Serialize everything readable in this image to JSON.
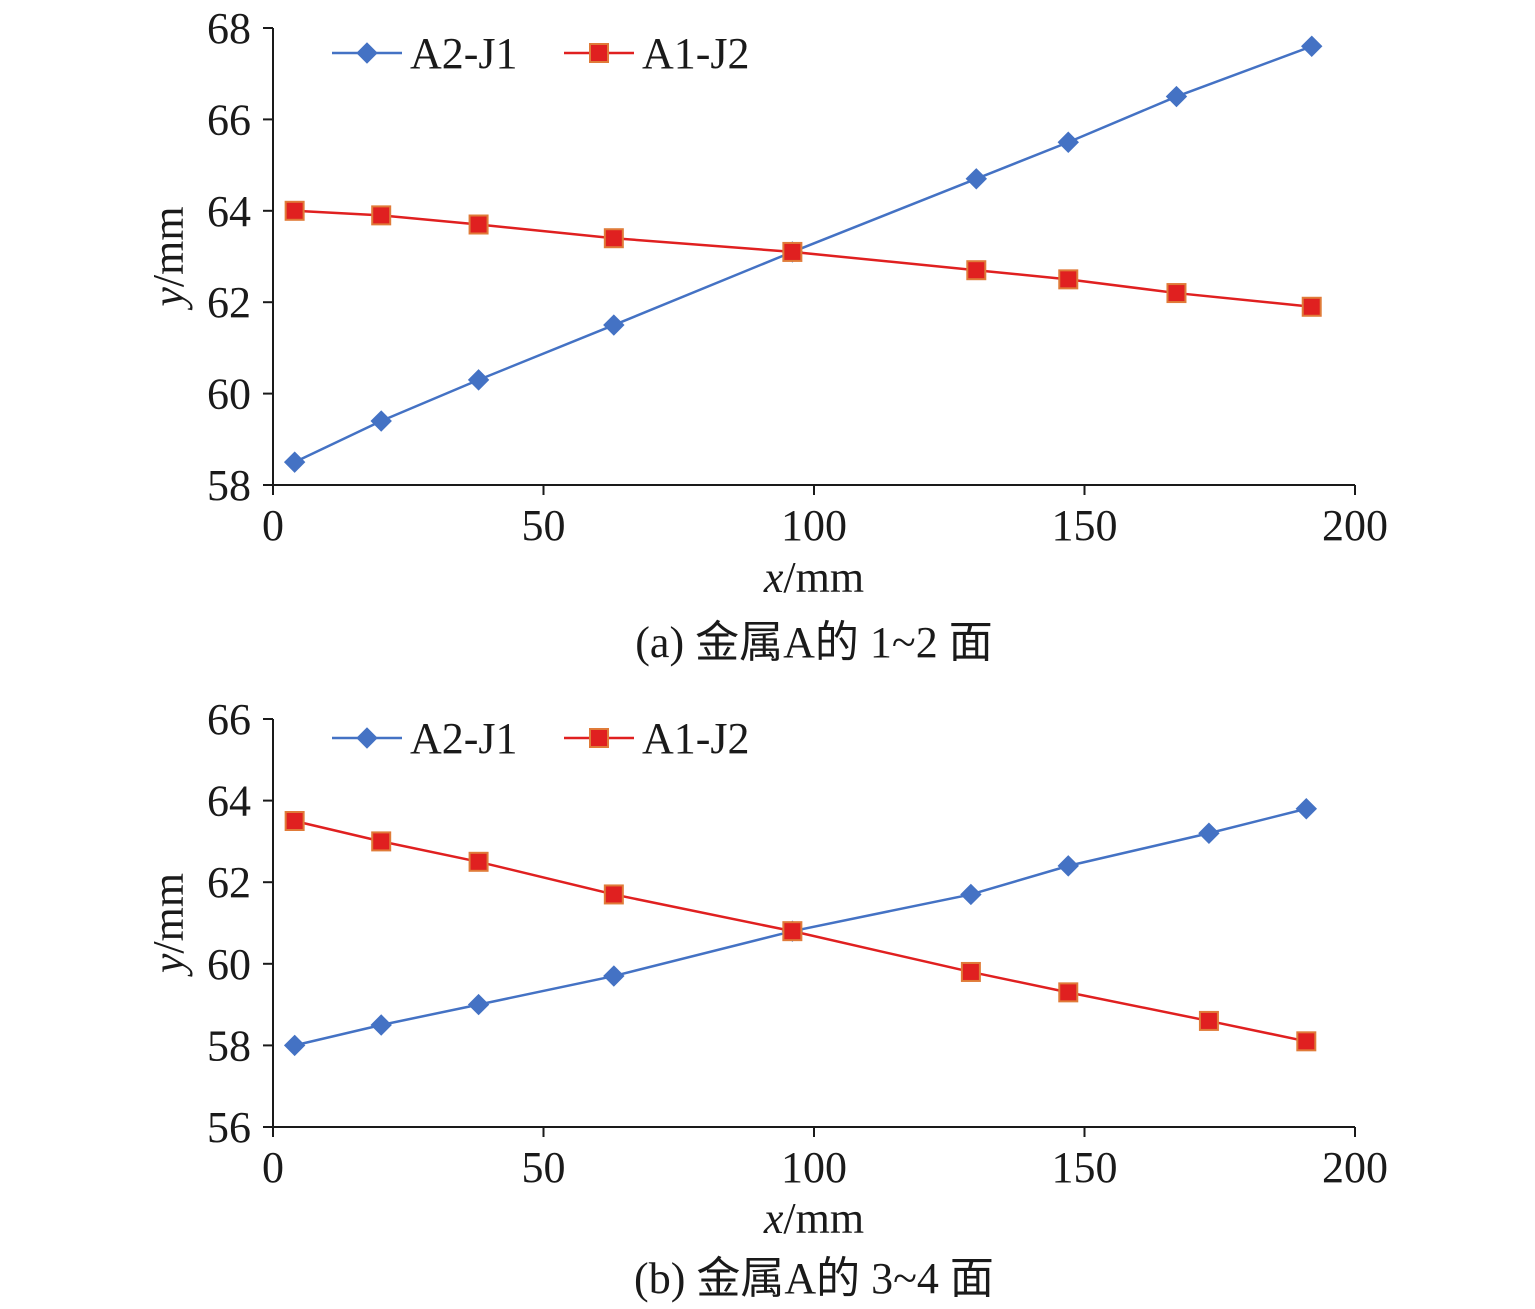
{
  "chart_data": [
    {
      "type": "line",
      "caption": "(a) 金属A的 1~2 面",
      "xlabel_var": "x",
      "xlabel_unit": "/mm",
      "ylabel_var": "y",
      "ylabel_unit": "/mm",
      "xlim": [
        0,
        200
      ],
      "ylim": [
        58,
        68
      ],
      "xticks": [
        0,
        50,
        100,
        150,
        200
      ],
      "yticks": [
        58,
        60,
        62,
        64,
        66,
        68
      ],
      "grid": false,
      "legend_position": "top-left",
      "series": [
        {
          "name": "A2-J1",
          "color": "#4472C4",
          "marker": "diamond",
          "x": [
            4,
            20,
            38,
            63,
            96,
            130,
            147,
            167,
            192
          ],
          "y": [
            58.5,
            59.4,
            60.3,
            61.5,
            63.1,
            64.7,
            65.5,
            66.5,
            67.6
          ]
        },
        {
          "name": "A1-J2",
          "color": "#E02020",
          "marker": "square",
          "x": [
            4,
            20,
            38,
            63,
            96,
            130,
            147,
            167,
            192
          ],
          "y": [
            64.0,
            63.9,
            63.7,
            63.4,
            63.1,
            62.7,
            62.5,
            62.2,
            61.9
          ]
        }
      ]
    },
    {
      "type": "line",
      "caption": "(b) 金属A的 3~4 面",
      "xlabel_var": "x",
      "xlabel_unit": "/mm",
      "ylabel_var": "y",
      "ylabel_unit": "/mm",
      "xlim": [
        0,
        200
      ],
      "ylim": [
        56,
        66
      ],
      "xticks": [
        0,
        50,
        100,
        150,
        200
      ],
      "yticks": [
        56,
        58,
        60,
        62,
        64,
        66
      ],
      "grid": false,
      "legend_position": "top-left",
      "series": [
        {
          "name": "A2-J1",
          "color": "#4472C4",
          "marker": "diamond",
          "x": [
            4,
            20,
            38,
            63,
            96,
            129,
            147,
            173,
            191
          ],
          "y": [
            58.0,
            58.5,
            59.0,
            59.7,
            60.8,
            61.7,
            62.4,
            63.2,
            63.8
          ]
        },
        {
          "name": "A1-J2",
          "color": "#E02020",
          "marker": "square",
          "x": [
            4,
            20,
            38,
            63,
            96,
            129,
            147,
            173,
            191
          ],
          "y": [
            63.5,
            63.0,
            62.5,
            61.7,
            60.8,
            59.8,
            59.3,
            58.6,
            58.1
          ]
        }
      ]
    }
  ]
}
